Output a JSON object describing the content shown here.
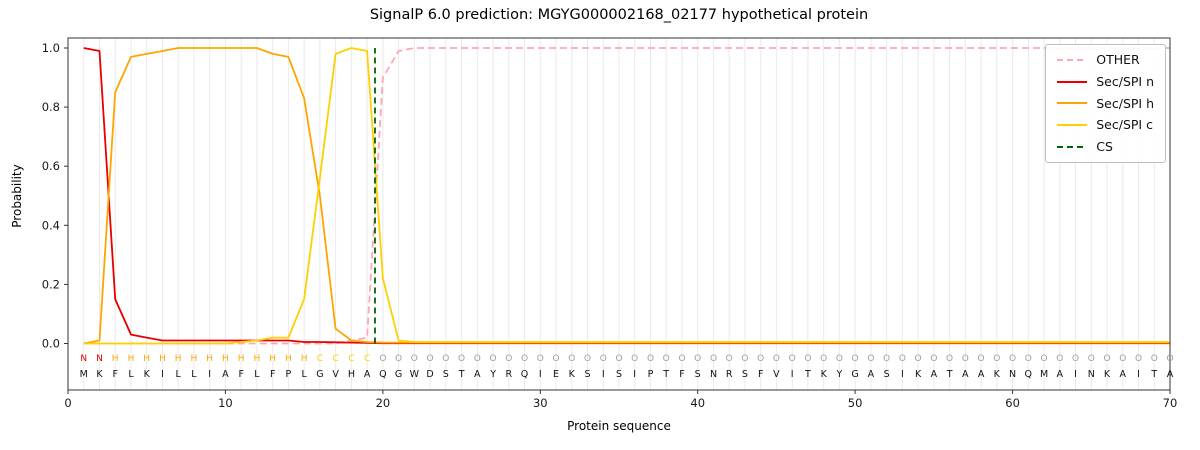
{
  "title": "SignalP 6.0 prediction: MGYG000002168_02177 hypothetical protein",
  "axes": {
    "xlabel": "Protein sequence",
    "ylabel": "Probability",
    "x_ticks": [
      0,
      10,
      20,
      30,
      40,
      50,
      60,
      70
    ],
    "y_ticks": [
      0,
      0.2,
      0.4,
      0.6,
      0.8,
      1
    ]
  },
  "colors": {
    "grid": "#eaeaea",
    "spine": "#333333",
    "tick_label": "#1a1a1a",
    "aa_letter": "#111111",
    "cs": "#006400"
  },
  "legend": {
    "items": [
      {
        "label": "OTHER",
        "color": "#ffa7b2",
        "dashed": true
      },
      {
        "label": "Sec/SPI n",
        "color": "#e60000",
        "dashed": false
      },
      {
        "label": "Sec/SPI h",
        "color": "#ffa500",
        "dashed": false
      },
      {
        "label": "Sec/SPI c",
        "color": "#ffd000",
        "dashed": false
      },
      {
        "label": "CS",
        "color": "#006400",
        "dashed": true
      }
    ]
  },
  "chart_data": {
    "type": "line",
    "title": "SignalP 6.0 prediction: MGYG000002168_02177 hypothetical protein",
    "xlabel": "Protein sequence",
    "ylabel": "Probability",
    "xlim": [
      0,
      70
    ],
    "ylim": [
      0,
      1.05
    ],
    "grid": true,
    "legend_position": "upper right",
    "x_start": 1,
    "cs_position": 19.5,
    "sequence": "MKFLKILLIAFLFPLGVHAQGWDSTAYRQIEKSISIPTFSNRSFVITKYGASIKATAAKNQMAINKAITA",
    "regions": [
      {
        "state": "N",
        "color": "#e60000",
        "start": 1,
        "end": 2
      },
      {
        "state": "H",
        "color": "#ffa500",
        "start": 3,
        "end": 15
      },
      {
        "state": "C",
        "color": "#ffd000",
        "start": 16,
        "end": 19
      },
      {
        "state": "O",
        "color": "#9e9e9e",
        "start": 20,
        "end": 70
      }
    ],
    "series": [
      {
        "name": "OTHER",
        "color": "#ffa7b2",
        "dashed": true,
        "values": [
          0,
          0,
          0,
          0,
          0,
          0,
          0,
          0,
          0,
          0,
          0,
          0,
          0,
          0,
          0,
          0,
          0,
          0.01,
          0.02,
          0.9,
          0.99,
          1,
          1,
          1,
          1,
          1,
          1,
          1,
          1,
          1,
          1,
          1,
          1,
          1,
          1,
          1,
          1,
          1,
          1,
          1,
          1,
          1,
          1,
          1,
          1,
          1,
          1,
          1,
          1,
          1,
          1,
          1,
          1,
          1,
          1,
          1,
          1,
          1,
          1,
          1,
          1,
          1,
          1,
          1,
          1,
          1,
          1,
          1,
          1,
          1
        ]
      },
      {
        "name": "Sec/SPI n",
        "color": "#e60000",
        "dashed": false,
        "values": [
          1,
          0.99,
          0.15,
          0.03,
          0.02,
          0.01,
          0.01,
          0.01,
          0.01,
          0.01,
          0.01,
          0.01,
          0.01,
          0.01,
          0.005,
          0.005,
          0.004,
          0.003,
          0.002,
          0.001,
          0.001,
          0.001,
          0.001,
          0.001,
          0.001,
          0.001,
          0.001,
          0.001,
          0.001,
          0.001,
          0.001,
          0.001,
          0.001,
          0.001,
          0.001,
          0.001,
          0.001,
          0.001,
          0.001,
          0.001,
          0.001,
          0.001,
          0.001,
          0.001,
          0.001,
          0.001,
          0.001,
          0.001,
          0.001,
          0.001,
          0.001,
          0.001,
          0.001,
          0.001,
          0.001,
          0.001,
          0.001,
          0.001,
          0.001,
          0.001,
          0.001,
          0.001,
          0.001,
          0.001,
          0.001,
          0.001,
          0.001,
          0.001,
          0.001,
          0.001
        ]
      },
      {
        "name": "Sec/SPI h",
        "color": "#ffa500",
        "dashed": false,
        "values": [
          0,
          0.01,
          0.85,
          0.97,
          0.98,
          0.99,
          1,
          1,
          1,
          1,
          1,
          1,
          0.98,
          0.97,
          0.83,
          0.5,
          0.05,
          0.01,
          0.005,
          0.003,
          0.003,
          0.003,
          0.003,
          0.003,
          0.003,
          0.003,
          0.003,
          0.003,
          0.003,
          0.003,
          0.003,
          0.003,
          0.003,
          0.003,
          0.003,
          0.003,
          0.003,
          0.003,
          0.003,
          0.003,
          0.003,
          0.003,
          0.003,
          0.003,
          0.003,
          0.003,
          0.003,
          0.003,
          0.003,
          0.003,
          0.003,
          0.003,
          0.003,
          0.003,
          0.003,
          0.003,
          0.003,
          0.003,
          0.003,
          0.003,
          0.003,
          0.003,
          0.003,
          0.003,
          0.003,
          0.003,
          0.003,
          0.003,
          0.003,
          0.003
        ]
      },
      {
        "name": "Sec/SPI c",
        "color": "#ffd000",
        "dashed": false,
        "values": [
          0,
          0,
          0,
          0,
          0,
          0,
          0,
          0,
          0,
          0,
          0.005,
          0.01,
          0.02,
          0.02,
          0.15,
          0.56,
          0.98,
          1,
          0.99,
          0.22,
          0.01,
          0.005,
          0.005,
          0.005,
          0.005,
          0.005,
          0.005,
          0.005,
          0.005,
          0.005,
          0.005,
          0.005,
          0.005,
          0.005,
          0.005,
          0.005,
          0.005,
          0.005,
          0.005,
          0.005,
          0.005,
          0.005,
          0.005,
          0.005,
          0.005,
          0.005,
          0.005,
          0.005,
          0.005,
          0.005,
          0.005,
          0.005,
          0.005,
          0.005,
          0.005,
          0.005,
          0.005,
          0.005,
          0.005,
          0.005,
          0.005,
          0.005,
          0.005,
          0.005,
          0.005,
          0.005,
          0.005,
          0.005,
          0.005,
          0.005
        ]
      }
    ]
  }
}
